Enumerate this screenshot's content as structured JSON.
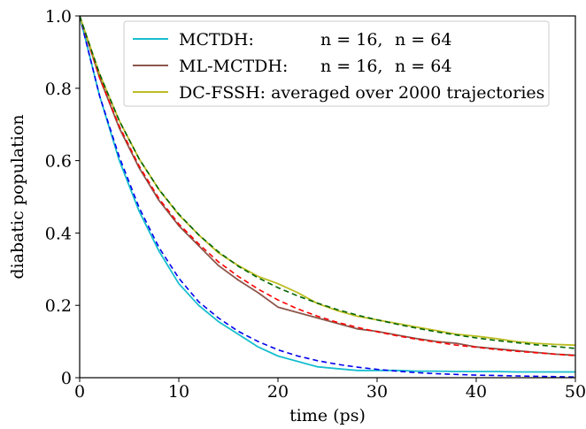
{
  "chart_data": {
    "type": "line",
    "xlabel": "time (ps)",
    "ylabel": "diabatic population",
    "xlim": [
      0,
      50
    ],
    "ylim": [
      0,
      1.0
    ],
    "xticks": [
      0,
      10,
      20,
      30,
      40,
      50
    ],
    "yticks": [
      0,
      0.2,
      0.4,
      0.6,
      0.8,
      1.0
    ],
    "xtick_labels": [
      "0",
      "10",
      "20",
      "30",
      "40",
      "50"
    ],
    "ytick_labels": [
      "0",
      "0.2",
      "0.4",
      "0.6",
      "0.8",
      "1.0"
    ],
    "grid": false,
    "legend_position": "top-right",
    "legend": [
      {
        "label": "MCTDH:",
        "n1": "n = 16,",
        "n2": "n = 64",
        "color": "#17becf"
      },
      {
        "label": "ML-MCTDH:",
        "n1": "n = 16,",
        "n2": "n = 64",
        "color": "#8c564b"
      },
      {
        "label": "DC-FSSH: averaged over 2000 trajectories",
        "color": "#bcbd22"
      }
    ],
    "series": [
      {
        "name": "MCTDH",
        "color": "#17becf",
        "style": "solid",
        "x": [
          0,
          2,
          4,
          6,
          8,
          10,
          12,
          14,
          16,
          18,
          20,
          22,
          24,
          26,
          28,
          30,
          32,
          34,
          36,
          38,
          40,
          42,
          44,
          46,
          48,
          50
        ],
        "y": [
          1.0,
          0.78,
          0.6,
          0.46,
          0.35,
          0.26,
          0.2,
          0.155,
          0.12,
          0.085,
          0.06,
          0.045,
          0.03,
          0.025,
          0.02,
          0.02,
          0.02,
          0.018,
          0.018,
          0.017,
          0.017,
          0.017,
          0.016,
          0.016,
          0.016,
          0.016
        ]
      },
      {
        "name": "MCTDH fit",
        "color": "#0000ee",
        "style": "dashed",
        "x": [
          0,
          2,
          4,
          6,
          8,
          10,
          12,
          14,
          16,
          18,
          20,
          22,
          24,
          26,
          28,
          30,
          32,
          34,
          36,
          38,
          40,
          42,
          44,
          46,
          48,
          50
        ],
        "y": [
          1.0,
          0.78,
          0.61,
          0.47,
          0.36,
          0.275,
          0.21,
          0.165,
          0.128,
          0.1,
          0.077,
          0.06,
          0.047,
          0.037,
          0.029,
          0.023,
          0.018,
          0.014,
          0.011,
          0.009,
          0.007,
          0.006,
          0.005,
          0.004,
          0.003,
          0.002
        ]
      },
      {
        "name": "ML-MCTDH",
        "color": "#8c564b",
        "style": "solid",
        "x": [
          0,
          2,
          4,
          6,
          8,
          10,
          12,
          14,
          16,
          18,
          20,
          22,
          24,
          26,
          28,
          30,
          32,
          34,
          36,
          38,
          40,
          42,
          44,
          46,
          48,
          50
        ],
        "y": [
          1.0,
          0.83,
          0.69,
          0.58,
          0.49,
          0.42,
          0.365,
          0.31,
          0.27,
          0.235,
          0.195,
          0.18,
          0.165,
          0.15,
          0.135,
          0.128,
          0.118,
          0.108,
          0.1,
          0.095,
          0.085,
          0.08,
          0.075,
          0.07,
          0.065,
          0.062
        ]
      },
      {
        "name": "ML-MCTDH fit",
        "color": "#ff0000",
        "style": "dashed",
        "x": [
          0,
          2,
          4,
          6,
          8,
          10,
          12,
          14,
          16,
          18,
          20,
          22,
          24,
          26,
          28,
          30,
          32,
          34,
          36,
          38,
          40,
          42,
          44,
          46,
          48,
          50
        ],
        "y": [
          1.0,
          0.83,
          0.695,
          0.585,
          0.495,
          0.425,
          0.37,
          0.32,
          0.28,
          0.245,
          0.215,
          0.19,
          0.17,
          0.153,
          0.139,
          0.127,
          0.116,
          0.106,
          0.098,
          0.09,
          0.084,
          0.078,
          0.073,
          0.069,
          0.065,
          0.061
        ]
      },
      {
        "name": "DC-FSSH",
        "color": "#bcbd22",
        "style": "solid",
        "x": [
          0,
          2,
          4,
          6,
          8,
          10,
          12,
          14,
          16,
          18,
          20,
          22,
          24,
          26,
          28,
          30,
          32,
          34,
          36,
          38,
          40,
          42,
          44,
          46,
          48,
          50
        ],
        "y": [
          1.0,
          0.84,
          0.71,
          0.605,
          0.52,
          0.45,
          0.395,
          0.345,
          0.31,
          0.28,
          0.26,
          0.235,
          0.205,
          0.185,
          0.17,
          0.16,
          0.15,
          0.14,
          0.13,
          0.12,
          0.115,
          0.108,
          0.1,
          0.095,
          0.092,
          0.09
        ]
      },
      {
        "name": "DC-FSSH fit",
        "color": "#006400",
        "style": "dashed",
        "x": [
          0,
          2,
          4,
          6,
          8,
          10,
          12,
          14,
          16,
          18,
          20,
          22,
          24,
          26,
          28,
          30,
          32,
          34,
          36,
          38,
          40,
          42,
          44,
          46,
          48,
          50
        ],
        "y": [
          1.0,
          0.84,
          0.71,
          0.605,
          0.52,
          0.452,
          0.395,
          0.348,
          0.308,
          0.276,
          0.249,
          0.226,
          0.206,
          0.188,
          0.173,
          0.16,
          0.148,
          0.137,
          0.127,
          0.118,
          0.11,
          0.103,
          0.097,
          0.091,
          0.086,
          0.081
        ]
      }
    ]
  }
}
